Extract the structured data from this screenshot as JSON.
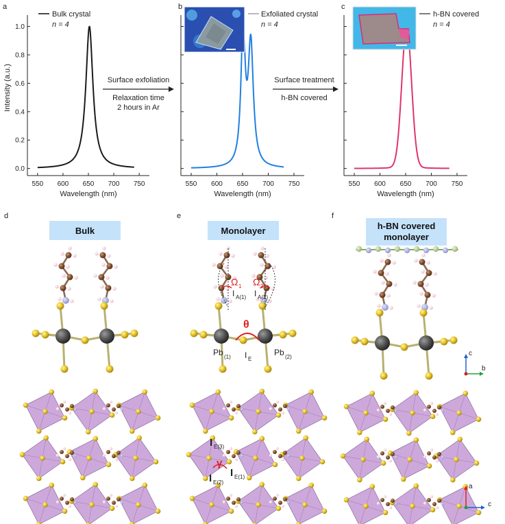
{
  "panels": {
    "a": {
      "letter": "a",
      "legend": "Bulk crystal",
      "n_label": "n = 4",
      "color": "#1a1a1a",
      "peak": {
        "center": 652,
        "width": 8.5
      }
    },
    "b": {
      "letter": "b",
      "legend": "Exfoliated crystal",
      "n_label": "n = 4",
      "color": "#1f7fe0",
      "peaks": [
        {
          "center": 651,
          "height": 0.94,
          "width": 5.0
        },
        {
          "center": 666,
          "height": 0.85,
          "width": 6.0
        }
      ]
    },
    "c": {
      "letter": "c",
      "legend": "h-BN covered",
      "n_label": "n = 4",
      "color": "#e0336a",
      "peak": {
        "center": 652,
        "width": 9.5
      }
    },
    "d": {
      "letter": "d",
      "box": "Bulk"
    },
    "e": {
      "letter": "e",
      "box": "Monolayer",
      "omega1": "Ω",
      "omega1_sub": "1",
      "omega2": "Ω",
      "omega2_sub": "2",
      "ia1": "I",
      "ia1_sub": "A(1)",
      "ia2": "I",
      "ia2_sub": "A(2)",
      "theta": "θ",
      "ie": "I",
      "ie_sub": "E",
      "pb1": "Pb",
      "pb1_sub": "(1)",
      "pb2": "Pb",
      "pb2_sub": "(2)",
      "ie3": "I",
      "ie3_sub": "E(3)",
      "ie1": "I",
      "ie1_sub": "E(1)",
      "ie2": "I",
      "ie2_sub": "E(2)",
      "gamma": "γ"
    },
    "f": {
      "letter": "f",
      "box_line1": "h-BN covered",
      "box_line2": "monolayer"
    }
  },
  "arrow1": {
    "line1": "Surface exfoliation",
    "line2": "Relaxation time",
    "line3": "2 hours in Ar"
  },
  "arrow2": {
    "line1": "Surface treatment",
    "line2": "h-BN covered"
  },
  "axes": {
    "y_label": "Intensity (a.u.)",
    "x_label": "Wavelength (nm)",
    "y_ticks": [
      "0.0",
      "0.2",
      "0.4",
      "0.6",
      "0.8",
      "1.0"
    ],
    "x_ticks": [
      "550",
      "600",
      "650",
      "700",
      "750"
    ]
  },
  "compass": {
    "top": {
      "c": "c",
      "b": "b"
    },
    "bottom": {
      "a": "a",
      "c": "c"
    }
  },
  "chart_data": [
    {
      "type": "line",
      "panel": "a",
      "xlabel": "Wavelength (nm)",
      "ylabel": "Intensity (a.u.)",
      "xlim": [
        530,
        770
      ],
      "ylim": [
        -0.05,
        1.08
      ],
      "series": [
        {
          "name": "Bulk crystal",
          "x_range": [
            550,
            740
          ],
          "peak_x": 652,
          "peak_y": 1.0
        }
      ]
    },
    {
      "type": "line",
      "panel": "b",
      "xlabel": "Wavelength (nm)",
      "ylim": [
        -0.05,
        1.08
      ],
      "xlim": [
        530,
        770
      ],
      "series": [
        {
          "name": "Exfoliated crystal",
          "x_range": [
            550,
            730
          ],
          "peaks_x": [
            651,
            666
          ],
          "peaks_y": [
            0.95,
            0.88
          ]
        }
      ]
    },
    {
      "type": "line",
      "panel": "c",
      "xlabel": "Wavelength (nm)",
      "ylim": [
        -0.05,
        1.08
      ],
      "xlim": [
        530,
        770
      ],
      "series": [
        {
          "name": "h-BN covered",
          "x_range": [
            550,
            735
          ],
          "peak_x": 653,
          "peak_y": 0.98
        }
      ]
    }
  ]
}
